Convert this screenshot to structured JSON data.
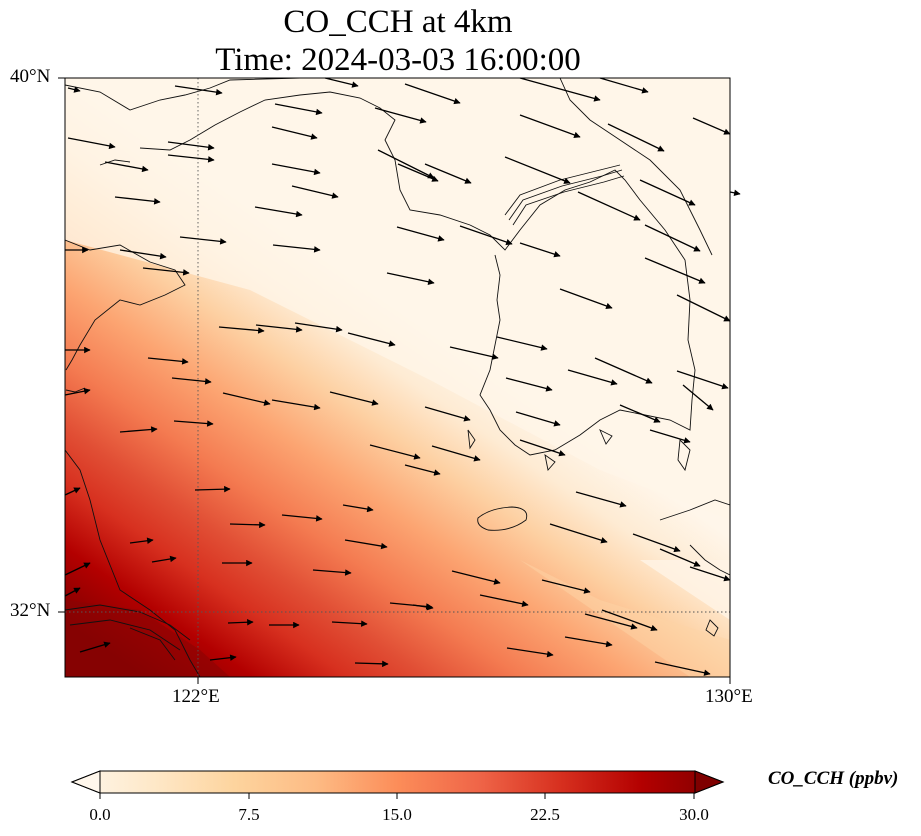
{
  "title_line1": "CO_CCH at 4km",
  "title_line2": "Time: 2024-03-03 16:00:00",
  "lat_ticks": [
    "40°N",
    "32°N"
  ],
  "lon_ticks": [
    "122°E",
    "130°E"
  ],
  "colorbar": {
    "label": "CO_CCH (ppbv)",
    "ticks": [
      "0.0",
      "7.5",
      "15.0",
      "22.5",
      "30.0"
    ],
    "min": 0,
    "max": 30,
    "colormap": [
      "#fff7ec",
      "#fee8c8",
      "#fdd49e",
      "#fdbb84",
      "#fc8d59",
      "#ef6548",
      "#d7301f",
      "#b30000",
      "#7f0000"
    ]
  },
  "map": {
    "lon_range": [
      120,
      130
    ],
    "lat_range": [
      31,
      40
    ],
    "gridline_lon": 122,
    "gridline_lat": 32,
    "plume_direction": "high concentration in southwest, decreasing toward northeast",
    "wind_direction": "east-southeast"
  }
}
